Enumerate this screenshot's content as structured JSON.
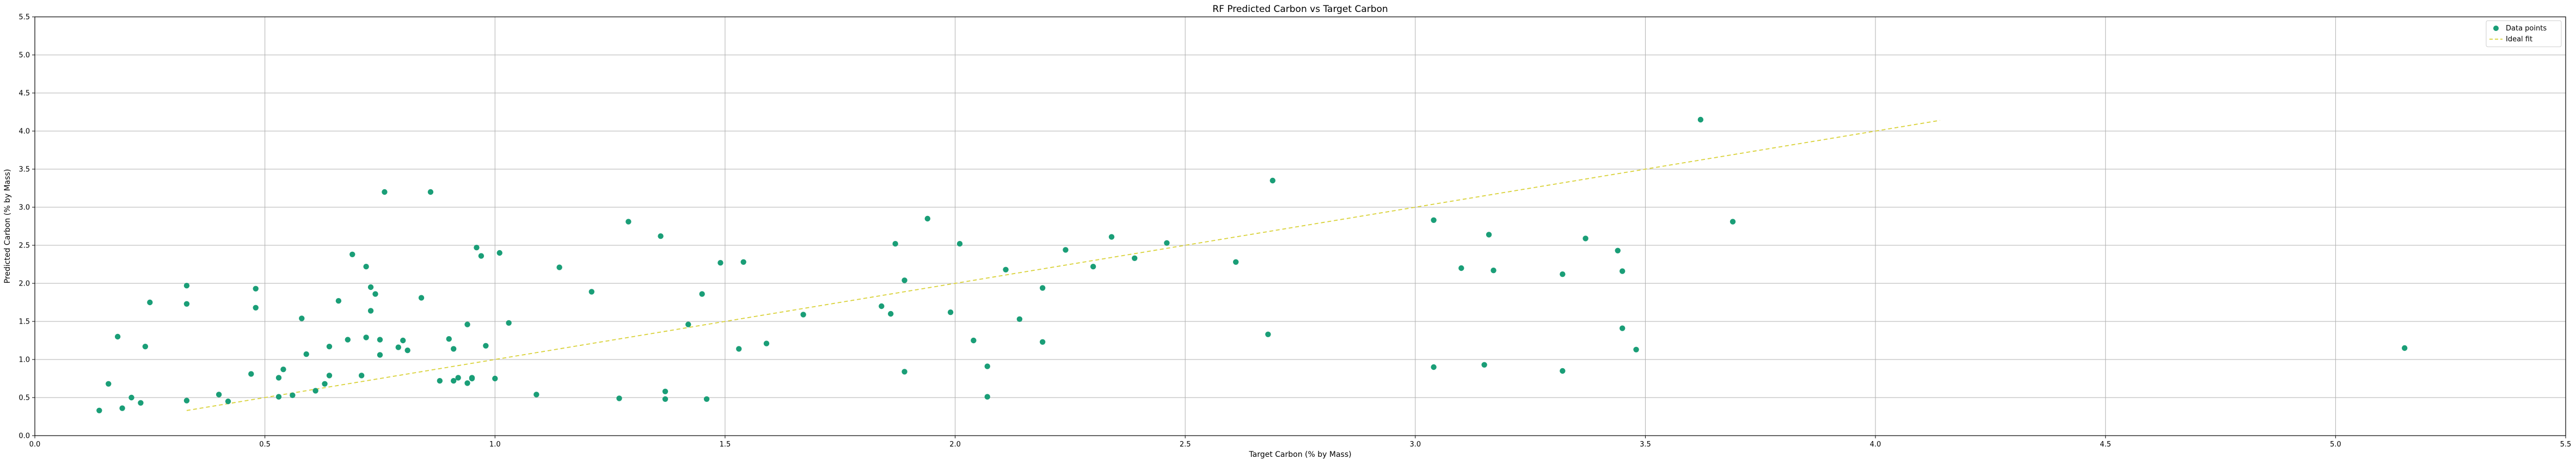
{
  "chart_data": {
    "type": "scatter",
    "title": "RF Predicted Carbon vs Target Carbon",
    "xlabel": "Target Carbon (% by Mass)",
    "ylabel": "Predicted Carbon (% by Mass)",
    "xlim": [
      0.0,
      5.5
    ],
    "ylim": [
      0.0,
      5.5
    ],
    "xticks": [
      "0.0",
      "0.5",
      "1.0",
      "1.5",
      "2.0",
      "2.5",
      "3.0",
      "3.5",
      "4.0",
      "4.5",
      "5.0",
      "5.5"
    ],
    "yticks": [
      "0.0",
      "0.5",
      "1.0",
      "1.5",
      "2.0",
      "2.5",
      "3.0",
      "3.5",
      "4.0",
      "4.5",
      "5.0",
      "5.5"
    ],
    "grid": true,
    "legend_position": "top-right",
    "colors": {
      "points": "#1a9e77",
      "ideal": "#d9d23a",
      "grid": "#b0b0b0"
    },
    "series": [
      {
        "name": "Data points",
        "kind": "scatter",
        "x": [
          0.14,
          0.16,
          0.18,
          0.19,
          0.21,
          0.23,
          0.24,
          0.25,
          0.33,
          0.33,
          0.33,
          0.4,
          0.42,
          0.47,
          0.48,
          0.48,
          0.53,
          0.53,
          0.54,
          0.56,
          0.58,
          0.59,
          0.61,
          0.63,
          0.64,
          0.64,
          0.66,
          0.68,
          0.69,
          0.71,
          0.72,
          0.72,
          0.73,
          0.73,
          0.74,
          0.75,
          0.75,
          0.76,
          0.79,
          0.8,
          0.81,
          0.84,
          0.86,
          0.88,
          0.9,
          0.91,
          0.91,
          0.92,
          0.94,
          0.94,
          0.95,
          0.95,
          0.96,
          0.97,
          0.98,
          1.0,
          1.01,
          1.03,
          1.09,
          1.14,
          1.21,
          1.27,
          1.29,
          1.36,
          1.37,
          1.37,
          1.42,
          1.45,
          1.46,
          1.49,
          1.53,
          1.54,
          1.59,
          1.67,
          1.84,
          1.86,
          1.87,
          1.89,
          1.89,
          1.94,
          1.99,
          2.01,
          2.04,
          2.07,
          2.07,
          2.11,
          2.14,
          2.19,
          2.19,
          2.24,
          2.3,
          2.34,
          2.39,
          2.46,
          2.61,
          2.68,
          2.69,
          3.04,
          3.04,
          3.1,
          3.15,
          3.16,
          3.17,
          3.32,
          3.32,
          3.37,
          3.44,
          3.45,
          3.45,
          3.48,
          3.62,
          3.69,
          5.15
        ],
        "y": [
          0.33,
          0.68,
          1.3,
          0.36,
          0.5,
          0.43,
          1.17,
          1.75,
          1.97,
          1.73,
          0.46,
          0.54,
          0.45,
          0.81,
          1.68,
          1.93,
          0.51,
          0.76,
          0.87,
          0.53,
          1.54,
          1.07,
          0.59,
          0.68,
          0.79,
          1.17,
          1.77,
          1.26,
          2.38,
          0.79,
          2.22,
          1.29,
          1.64,
          1.95,
          1.86,
          1.26,
          1.06,
          3.2,
          1.16,
          1.25,
          1.12,
          1.81,
          3.2,
          0.72,
          1.27,
          1.14,
          0.72,
          0.76,
          1.46,
          0.69,
          0.76,
          0.75,
          2.47,
          2.36,
          1.18,
          0.75,
          2.4,
          1.48,
          0.54,
          2.21,
          1.89,
          0.49,
          2.81,
          2.62,
          0.58,
          0.48,
          1.46,
          1.86,
          0.48,
          2.27,
          1.14,
          2.28,
          1.21,
          1.59,
          1.7,
          1.6,
          2.52,
          2.04,
          0.84,
          2.85,
          1.62,
          2.52,
          1.25,
          0.91,
          0.51,
          2.18,
          1.53,
          1.94,
          1.23,
          2.44,
          2.22,
          2.61,
          2.33,
          2.53,
          2.28,
          1.33,
          3.35,
          2.83,
          0.9,
          2.2,
          0.93,
          2.64,
          2.17,
          2.12,
          0.85,
          2.59,
          2.43,
          2.16,
          1.41,
          1.13,
          4.15,
          2.81,
          1.15
        ]
      },
      {
        "name": "Ideal fit",
        "kind": "line",
        "style": "dashed",
        "x": [
          0.33,
          4.14
        ],
        "y": [
          0.33,
          4.14
        ]
      }
    ]
  }
}
